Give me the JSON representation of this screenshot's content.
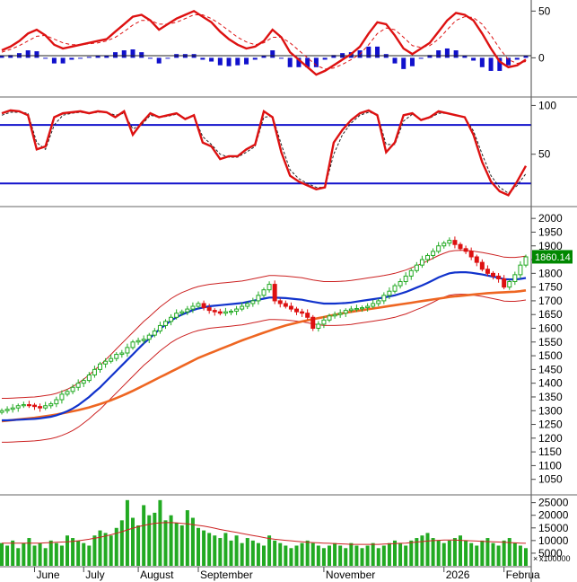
{
  "colors": {
    "up": "#22aa22",
    "down": "#dd1111",
    "macd_line": "#dd1111",
    "signal_line": "#dd1111",
    "histogram": "#1111cc",
    "stoch_k": "#dd1111",
    "stoch_d": "#222222",
    "stoch_levels": "#1111cc",
    "ma_fast": "#1133cc",
    "ma_slow": "#ee6622",
    "bollinger": "#cc2222",
    "price_tag": "#008800",
    "volume": "#22aa22",
    "volume_ma": "#cc2222",
    "grid": "#999999"
  },
  "icons": {
    "unit_marker": "x-icon"
  },
  "chart_data": [
    {
      "id": "macd",
      "type": "line",
      "title": "",
      "ylim": [
        -40,
        58
      ],
      "y_ticks": [
        "50",
        "0"
      ],
      "y_tick_values": [
        50,
        0
      ],
      "series": [
        {
          "values": [
            8,
            12,
            18,
            26,
            30,
            24,
            14,
            10,
            12,
            14,
            16,
            18,
            20,
            28,
            36,
            44,
            46,
            40,
            30,
            36,
            42,
            46,
            50,
            44,
            38,
            28,
            20,
            14,
            10,
            12,
            18,
            30,
            22,
            6,
            -2,
            -10,
            -18,
            -14,
            -8,
            -2,
            4,
            12,
            26,
            38,
            36,
            24,
            10,
            4,
            10,
            16,
            28,
            40,
            48,
            46,
            40,
            26,
            10,
            -4,
            -10,
            -8,
            -2
          ]
        },
        {
          "values": [
            6,
            9,
            13,
            18,
            23,
            24,
            20,
            16,
            14,
            14,
            15,
            16,
            18,
            22,
            28,
            35,
            40,
            40,
            36,
            36,
            38,
            42,
            46,
            46,
            42,
            36,
            29,
            22,
            17,
            14,
            16,
            22,
            22,
            16,
            8,
            0,
            -8,
            -12,
            -11,
            -7,
            -2,
            4,
            14,
            26,
            32,
            30,
            22,
            13,
            11,
            13,
            20,
            30,
            40,
            44,
            43,
            36,
            24,
            10,
            -2,
            -6,
            -4
          ]
        },
        {
          "values": [
            2,
            3,
            5,
            8,
            7,
            0,
            -6,
            -6,
            -2,
            0,
            1,
            2,
            2,
            6,
            8,
            9,
            6,
            0,
            -6,
            0,
            4,
            4,
            4,
            -2,
            -4,
            -8,
            -9,
            -8,
            -7,
            -2,
            2,
            8,
            0,
            -10,
            -10,
            -10,
            -10,
            -2,
            3,
            5,
            6,
            8,
            12,
            12,
            4,
            -6,
            -12,
            -9,
            -1,
            3,
            8,
            10,
            8,
            2,
            -3,
            -10,
            -14,
            -14,
            -8,
            -2,
            2
          ]
        }
      ]
    },
    {
      "id": "stochastic",
      "type": "line",
      "title": "",
      "ylim": [
        0,
        105
      ],
      "y_ticks": [
        "100",
        "50"
      ],
      "y_tick_values": [
        100,
        50
      ],
      "levels": [
        80,
        20
      ],
      "series": [
        {
          "values": [
            92,
            95,
            94,
            90,
            55,
            58,
            88,
            92,
            93,
            94,
            92,
            94,
            93,
            88,
            94,
            70,
            82,
            92,
            88,
            90,
            92,
            86,
            90,
            62,
            58,
            45,
            48,
            48,
            55,
            60,
            94,
            88,
            52,
            28,
            22,
            18,
            14,
            16,
            62,
            75,
            85,
            92,
            95,
            90,
            52,
            62,
            90,
            92,
            85,
            88,
            94,
            92,
            90,
            88,
            70,
            42,
            22,
            12,
            8,
            22,
            38
          ]
        },
        {
          "values": [
            90,
            93,
            93,
            92,
            62,
            55,
            80,
            90,
            92,
            93,
            92,
            93,
            93,
            90,
            92,
            76,
            80,
            90,
            88,
            89,
            91,
            87,
            89,
            68,
            60,
            50,
            47,
            47,
            52,
            58,
            88,
            89,
            60,
            34,
            25,
            20,
            16,
            16,
            50,
            70,
            82,
            90,
            93,
            91,
            60,
            60,
            84,
            91,
            86,
            87,
            92,
            92,
            90,
            88,
            74,
            50,
            28,
            16,
            10,
            18,
            30
          ]
        }
      ]
    },
    {
      "id": "price",
      "type": "line",
      "title": "",
      "ylim": [
        1000,
        2030
      ],
      "y_ticks": [
        "2000",
        "1950",
        "1900",
        "1850",
        "1800",
        "1750",
        "1700",
        "1650",
        "1600",
        "1550",
        "1500",
        "1450",
        "1400",
        "1350",
        "1300",
        "1250",
        "1200",
        "1150",
        "1100",
        "1050"
      ],
      "y_tick_values": [
        2000,
        1950,
        1900,
        1850,
        1800,
        1750,
        1700,
        1650,
        1600,
        1550,
        1500,
        1450,
        1400,
        1350,
        1300,
        1250,
        1200,
        1150,
        1100,
        1050
      ],
      "x_labels": [
        "June",
        "July",
        "August",
        "September",
        "November",
        "2026",
        "Februa"
      ],
      "x_label_index": [
        6,
        15,
        25,
        36,
        59,
        81,
        92
      ],
      "last_price": "1860.14",
      "last_value": 1860.14,
      "n_bars": 97,
      "close": [
        1300,
        1305,
        1310,
        1318,
        1322,
        1320,
        1315,
        1310,
        1318,
        1325,
        1340,
        1360,
        1370,
        1385,
        1400,
        1410,
        1430,
        1450,
        1470,
        1480,
        1490,
        1505,
        1510,
        1530,
        1550,
        1555,
        1560,
        1575,
        1590,
        1610,
        1625,
        1640,
        1655,
        1660,
        1670,
        1680,
        1690,
        1675,
        1665,
        1660,
        1655,
        1660,
        1662,
        1670,
        1680,
        1690,
        1700,
        1720,
        1740,
        1760,
        1700,
        1690,
        1680,
        1670,
        1660,
        1655,
        1640,
        1600,
        1615,
        1630,
        1645,
        1650,
        1655,
        1665,
        1670,
        1672,
        1675,
        1680,
        1690,
        1700,
        1720,
        1735,
        1755,
        1770,
        1790,
        1810,
        1830,
        1850,
        1865,
        1880,
        1900,
        1910,
        1920,
        1905,
        1890,
        1880,
        1860,
        1840,
        1815,
        1800,
        1790,
        1780,
        1750,
        1770,
        1795,
        1830,
        1860
      ],
      "ma_fast": [
        1265,
        1265,
        1266,
        1267,
        1268,
        1269,
        1270,
        1272,
        1275,
        1278,
        1283,
        1290,
        1298,
        1308,
        1320,
        1335,
        1350,
        1368,
        1385,
        1405,
        1425,
        1445,
        1465,
        1485,
        1505,
        1525,
        1545,
        1562,
        1580,
        1598,
        1613,
        1628,
        1640,
        1650,
        1658,
        1666,
        1672,
        1676,
        1680,
        1682,
        1684,
        1686,
        1688,
        1690,
        1692,
        1696,
        1700,
        1704,
        1708,
        1712,
        1712,
        1711,
        1710,
        1708,
        1706,
        1704,
        1700,
        1696,
        1693,
        1690,
        1690,
        1690,
        1691,
        1692,
        1694,
        1697,
        1700,
        1703,
        1706,
        1709,
        1712,
        1716,
        1720,
        1726,
        1732,
        1740,
        1748,
        1756,
        1765,
        1775,
        1785,
        1793,
        1800,
        1803,
        1804,
        1804,
        1802,
        1799,
        1796,
        1792,
        1788,
        1784,
        1779,
        1778,
        1778,
        1780,
        1783
      ],
      "ma_slow": [
        1262,
        1264,
        1266,
        1268,
        1270,
        1272,
        1274,
        1277,
        1280,
        1283,
        1286,
        1290,
        1294,
        1298,
        1302,
        1307,
        1312,
        1318,
        1324,
        1331,
        1338,
        1346,
        1354,
        1363,
        1372,
        1382,
        1392,
        1402,
        1412,
        1422,
        1432,
        1442,
        1452,
        1462,
        1472,
        1482,
        1492,
        1500,
        1508,
        1516,
        1524,
        1532,
        1540,
        1548,
        1556,
        1563,
        1570,
        1577,
        1584,
        1591,
        1598,
        1604,
        1610,
        1615,
        1620,
        1625,
        1629,
        1633,
        1637,
        1641,
        1645,
        1649,
        1653,
        1657,
        1660,
        1663,
        1666,
        1669,
        1672,
        1675,
        1678,
        1681,
        1684,
        1687,
        1690,
        1693,
        1696,
        1699,
        1702,
        1705,
        1708,
        1711,
        1714,
        1716,
        1718,
        1720,
        1722,
        1724,
        1726,
        1728,
        1729,
        1730,
        1731,
        1732,
        1733,
        1735,
        1738
      ],
      "band_upper": [
        1345,
        1345,
        1346,
        1347,
        1348,
        1349,
        1350,
        1352,
        1355,
        1358,
        1363,
        1370,
        1378,
        1388,
        1400,
        1415,
        1430,
        1448,
        1465,
        1485,
        1505,
        1525,
        1545,
        1565,
        1585,
        1605,
        1625,
        1642,
        1660,
        1678,
        1693,
        1708,
        1720,
        1730,
        1738,
        1746,
        1752,
        1756,
        1760,
        1762,
        1764,
        1766,
        1768,
        1770,
        1772,
        1776,
        1780,
        1784,
        1788,
        1792,
        1792,
        1791,
        1790,
        1788,
        1786,
        1784,
        1780,
        1776,
        1773,
        1770,
        1770,
        1770,
        1771,
        1772,
        1774,
        1777,
        1780,
        1783,
        1786,
        1789,
        1792,
        1796,
        1800,
        1806,
        1812,
        1820,
        1828,
        1836,
        1845,
        1855,
        1865,
        1873,
        1880,
        1883,
        1884,
        1884,
        1882,
        1879,
        1876,
        1872,
        1868,
        1864,
        1859,
        1858,
        1858,
        1860,
        1863
      ],
      "band_lower": [
        1185,
        1185,
        1186,
        1187,
        1188,
        1189,
        1190,
        1192,
        1195,
        1198,
        1203,
        1210,
        1218,
        1228,
        1240,
        1255,
        1270,
        1288,
        1305,
        1325,
        1345,
        1365,
        1385,
        1405,
        1425,
        1445,
        1465,
        1482,
        1500,
        1518,
        1533,
        1548,
        1560,
        1570,
        1578,
        1586,
        1592,
        1596,
        1600,
        1602,
        1604,
        1606,
        1608,
        1610,
        1612,
        1616,
        1620,
        1624,
        1628,
        1632,
        1632,
        1631,
        1630,
        1628,
        1626,
        1624,
        1620,
        1616,
        1613,
        1610,
        1610,
        1610,
        1611,
        1612,
        1614,
        1617,
        1620,
        1623,
        1626,
        1629,
        1632,
        1636,
        1640,
        1646,
        1652,
        1660,
        1668,
        1676,
        1685,
        1695,
        1705,
        1713,
        1720,
        1723,
        1724,
        1724,
        1722,
        1719,
        1716,
        1712,
        1708,
        1704,
        1699,
        1698,
        1698,
        1700,
        1703
      ]
    },
    {
      "id": "volume",
      "type": "bar",
      "title": "",
      "ylim": [
        0,
        27000
      ],
      "y_ticks": [
        "25000",
        "20000",
        "15000",
        "10000",
        "5000"
      ],
      "y_tick_values": [
        25000,
        20000,
        15000,
        10000,
        5000
      ],
      "unit_label": "x100000",
      "values": [
        9000,
        8000,
        10000,
        7000,
        9000,
        11000,
        8000,
        9000,
        7000,
        10000,
        9000,
        8000,
        12000,
        11000,
        10000,
        9000,
        8000,
        12000,
        14000,
        13000,
        12000,
        15000,
        18000,
        26000,
        19000,
        16000,
        24000,
        20000,
        21000,
        26000,
        18000,
        20000,
        17000,
        16000,
        22000,
        19000,
        15000,
        14000,
        13000,
        12000,
        11000,
        13000,
        10000,
        12000,
        9000,
        11000,
        10000,
        9000,
        8000,
        12000,
        10000,
        9000,
        8000,
        7000,
        8000,
        9000,
        10000,
        9000,
        8000,
        7000,
        8000,
        9000,
        8000,
        7000,
        9000,
        8000,
        7000,
        8000,
        9000,
        7000,
        8000,
        9000,
        10000,
        9000,
        8000,
        10000,
        11000,
        12000,
        13000,
        11000,
        10000,
        9000,
        10000,
        11000,
        12000,
        10000,
        9000,
        8000,
        10000,
        11000,
        9000,
        8000,
        10000,
        11000,
        9000,
        8000,
        7000
      ],
      "ma": [
        9000,
        9000,
        9000,
        9000,
        9000,
        9000,
        9000,
        9000,
        9100,
        9200,
        9300,
        9400,
        9500,
        9700,
        9900,
        10200,
        10500,
        10900,
        11300,
        11800,
        12300,
        12900,
        13500,
        14200,
        14900,
        15500,
        16000,
        16400,
        16800,
        17000,
        17100,
        17100,
        17000,
        16800,
        16600,
        16300,
        16000,
        15700,
        15300,
        14900,
        14400,
        14000,
        13600,
        13200,
        12800,
        12400,
        12000,
        11600,
        11200,
        10800,
        10500,
        10300,
        10100,
        9900,
        9700,
        9500,
        9300,
        9200,
        9100,
        9000,
        8900,
        8800,
        8700,
        8600,
        8500,
        8500,
        8500,
        8500,
        8500,
        8500,
        8600,
        8700,
        8800,
        8900,
        9000,
        9200,
        9400,
        9600,
        9800,
        10000,
        10100,
        10200,
        10200,
        10200,
        10100,
        10000,
        9900,
        9800,
        9700,
        9600,
        9500,
        9400,
        9300,
        9200,
        9100,
        9000,
        8900
      ]
    }
  ]
}
